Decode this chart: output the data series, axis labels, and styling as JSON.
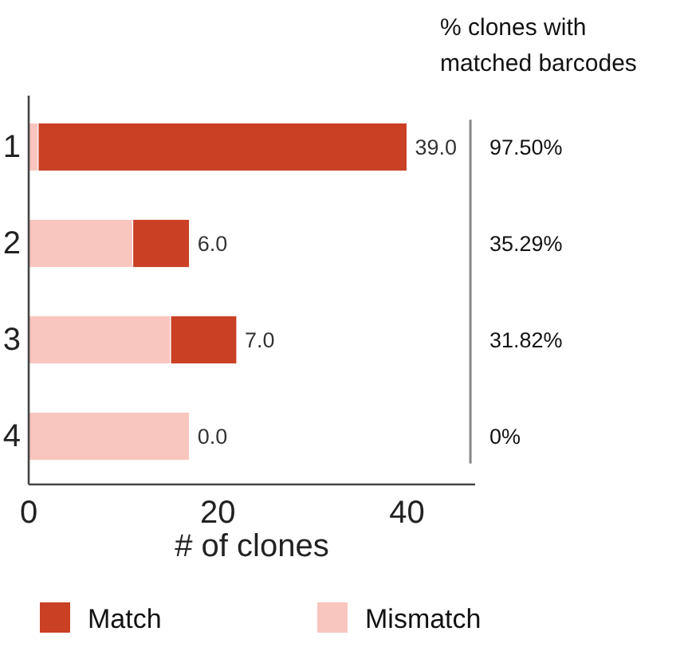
{
  "chart_data": {
    "type": "bar",
    "orientation": "horizontal",
    "stacked": true,
    "categories": [
      "1",
      "2",
      "3",
      "4"
    ],
    "series": [
      {
        "name": "Mismatch",
        "color": "#f9c5bf",
        "values": [
          1,
          11,
          15,
          17
        ]
      },
      {
        "name": "Match",
        "color": "#c94025",
        "values": [
          39,
          6,
          7,
          0
        ],
        "value_labels": [
          "39.0",
          "6.0",
          "7.0",
          "0.0"
        ]
      }
    ],
    "ref_lines": [
      {
        "axis": "x",
        "value": 46.7,
        "color": "#888888"
      }
    ],
    "xlim": [
      0,
      47.2
    ],
    "xticks": [
      0,
      20,
      40
    ],
    "xlabel": "# of clones",
    "legend": "bottom",
    "annotations": [
      "% clones with matched barcodes",
      "97.50%",
      "35.29%",
      "31.82%",
      "0%"
    ]
  }
}
